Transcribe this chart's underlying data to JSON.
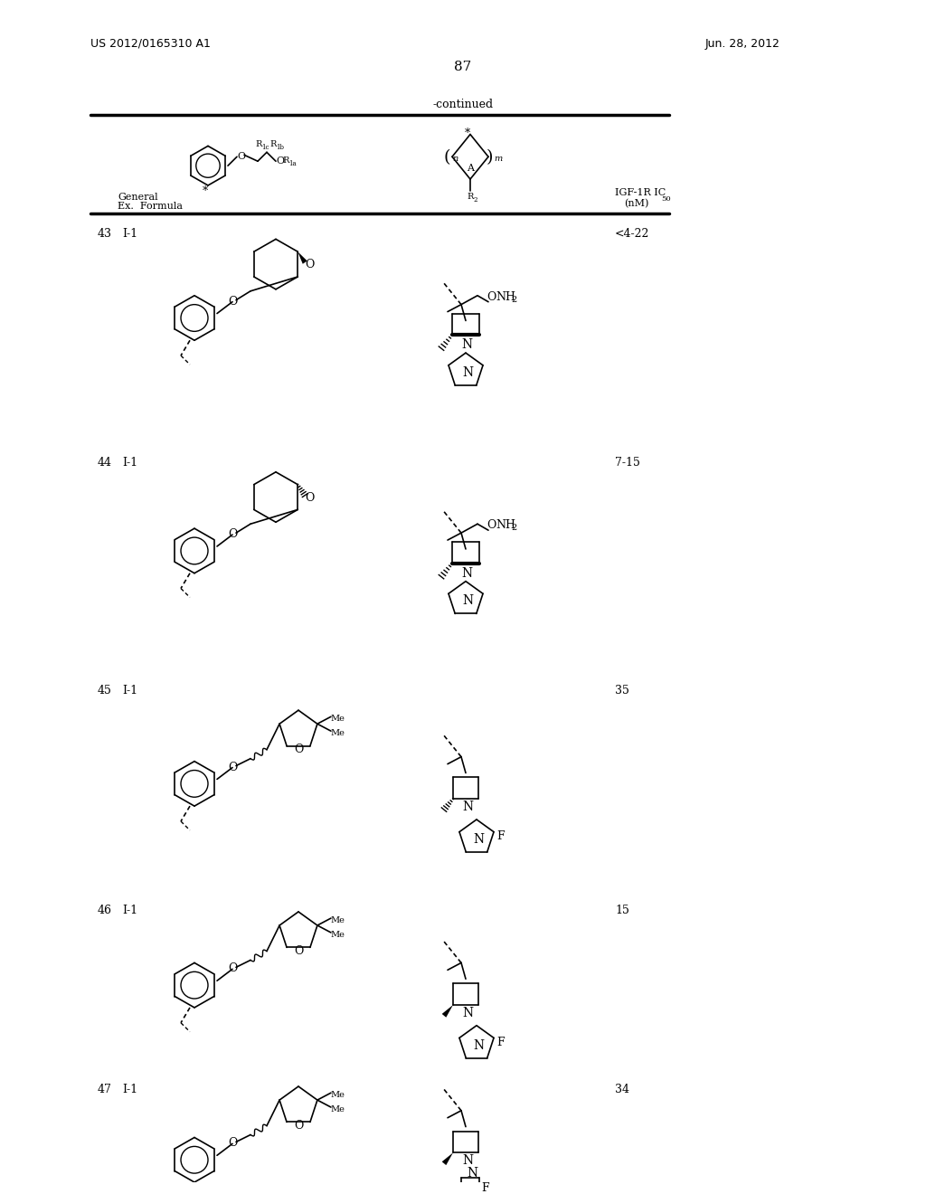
{
  "page_number": "87",
  "patent_number": "US 2012/0165310 A1",
  "patent_date": "Jun. 28, 2012",
  "continued_label": "-continued",
  "background_color": "#ffffff",
  "text_color": "#000000",
  "header": {
    "general_formula_label": "General\nEx.  Formula",
    "igf_label": "IGF-1R IC₅₀\n(nM)"
  },
  "rows": [
    {
      "ex": "43",
      "formula": "I-1",
      "ic50": "<4-22"
    },
    {
      "ex": "44",
      "formula": "I-1",
      "ic50": "7-15"
    },
    {
      "ex": "45",
      "formula": "I-1",
      "ic50": "35"
    },
    {
      "ex": "46",
      "formula": "I-1",
      "ic50": "15"
    },
    {
      "ex": "47",
      "formula": "I-1",
      "ic50": "34"
    }
  ]
}
